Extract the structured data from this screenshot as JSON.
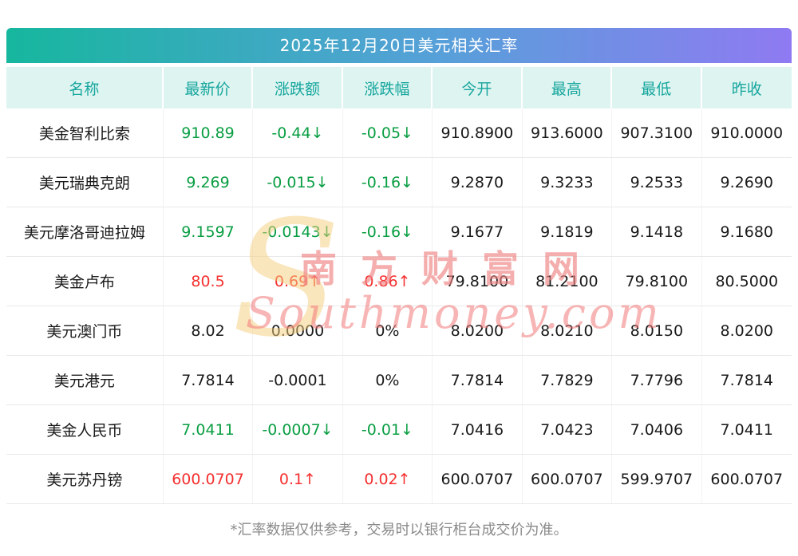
{
  "title": "2025年12月20日美元相关汇率",
  "table": {
    "headers": [
      "名称",
      "最新价",
      "涨跌额",
      "涨跌幅",
      "今开",
      "最高",
      "最低",
      "昨收"
    ],
    "rows": [
      {
        "name": "美金智利比索",
        "last": "910.89",
        "change": "-0.44↓",
        "pct": "-0.05↓",
        "open": "910.8900",
        "high": "913.6000",
        "low": "907.3100",
        "prev": "910.0000",
        "trend": "down"
      },
      {
        "name": "美元瑞典克朗",
        "last": "9.269",
        "change": "-0.015↓",
        "pct": "-0.16↓",
        "open": "9.2870",
        "high": "9.3233",
        "low": "9.2533",
        "prev": "9.2690",
        "trend": "down"
      },
      {
        "name": "美元摩洛哥迪拉姆",
        "last": "9.1597",
        "change": "-0.0143↓",
        "pct": "-0.16↓",
        "open": "9.1677",
        "high": "9.1819",
        "low": "9.1418",
        "prev": "9.1680",
        "trend": "down"
      },
      {
        "name": "美金卢布",
        "last": "80.5",
        "change": "0.69↑",
        "pct": "0.86↑",
        "open": "79.8100",
        "high": "81.2100",
        "low": "79.8100",
        "prev": "80.5000",
        "trend": "up"
      },
      {
        "name": "美元澳门币",
        "last": "8.02",
        "change": "0.0000",
        "pct": "0%",
        "open": "8.0200",
        "high": "8.0210",
        "low": "8.0150",
        "prev": "8.0200",
        "trend": "flat"
      },
      {
        "name": "美元港元",
        "last": "7.7814",
        "change": "-0.0001",
        "pct": "0%",
        "open": "7.7814",
        "high": "7.7829",
        "low": "7.7796",
        "prev": "7.7814",
        "trend": "flat"
      },
      {
        "name": "美金人民币",
        "last": "7.0411",
        "change": "-0.0007↓",
        "pct": "-0.01↓",
        "open": "7.0416",
        "high": "7.0423",
        "low": "7.0406",
        "prev": "7.0411",
        "trend": "down"
      },
      {
        "name": "美元苏丹镑",
        "last": "600.0707",
        "change": "0.1↑",
        "pct": "0.02↑",
        "open": "600.0707",
        "high": "600.0707",
        "low": "599.9707",
        "prev": "600.0707",
        "trend": "up"
      }
    ]
  },
  "footer": "*汇率数据仅供参考，交易时以银行柜台成交价为准。",
  "watermark": {
    "cn": "南方财富网",
    "en": "Southmoney.com",
    "glyph": "S"
  },
  "colors": {
    "up": "#f53030",
    "down": "#0a9e43",
    "flat": "#1a1a1a",
    "gradient_start": "#16b79e",
    "gradient_end": "#8f7af2",
    "header_bg": "#def4f0",
    "header_text": "#16a69e"
  },
  "chart_data": {
    "type": "table",
    "title": "2025年12月20日美元相关汇率",
    "columns": [
      "名称",
      "最新价",
      "涨跌额",
      "涨跌幅",
      "今开",
      "最高",
      "最低",
      "昨收"
    ],
    "rows": [
      [
        "美金智利比索",
        910.89,
        -0.44,
        "-0.05%",
        910.89,
        913.6,
        907.31,
        910.0
      ],
      [
        "美元瑞典克朗",
        9.269,
        -0.015,
        "-0.16%",
        9.287,
        9.3233,
        9.2533,
        9.269
      ],
      [
        "美元摩洛哥迪拉姆",
        9.1597,
        -0.0143,
        "-0.16%",
        9.1677,
        9.1819,
        9.1418,
        9.168
      ],
      [
        "美金卢布",
        80.5,
        0.69,
        "0.86%",
        79.81,
        81.21,
        79.81,
        80.5
      ],
      [
        "美元澳门币",
        8.02,
        0.0,
        "0%",
        8.02,
        8.021,
        8.015,
        8.02
      ],
      [
        "美元港元",
        7.7814,
        -0.0001,
        "0%",
        7.7814,
        7.7829,
        7.7796,
        7.7814
      ],
      [
        "美金人民币",
        7.0411,
        -0.0007,
        "-0.01%",
        7.0416,
        7.0423,
        7.0406,
        7.0411
      ],
      [
        "美元苏丹镑",
        600.0707,
        0.1,
        "0.02%",
        600.0707,
        600.0707,
        599.9707,
        600.0707
      ]
    ]
  }
}
